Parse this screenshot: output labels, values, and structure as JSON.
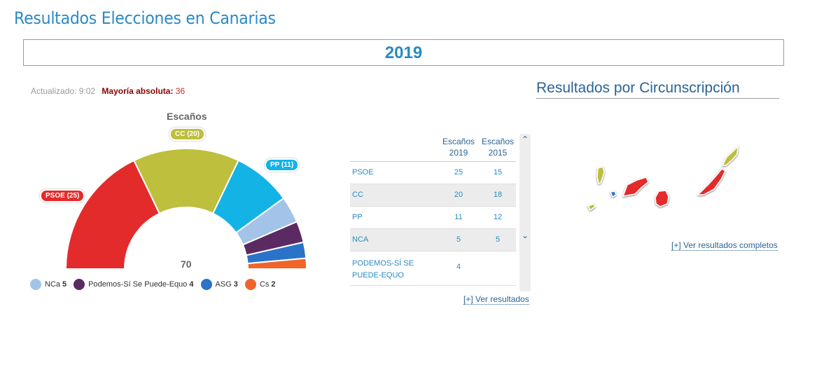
{
  "page": {
    "title": "Resultados Elecciones en Canarias",
    "year": "2019"
  },
  "status": {
    "updated_label": "Actualizado:",
    "updated_time": "9:02",
    "majority_label": "Mayoría absoluta:",
    "majority_value": "36"
  },
  "hemicycle": {
    "title": "Escaños",
    "total": "70",
    "tags": {
      "psoe": "PSOE (25)",
      "cc": "CC (20)",
      "pp": "PP (11)"
    },
    "colors": {
      "PSOE": "#e42b2b",
      "CC": "#bdbf3d",
      "PP": "#14b3e6",
      "NCa": "#a3c4e8",
      "Podemos": "#5b2a63",
      "ASG": "#2a73c8",
      "Cs": "#f0642a"
    }
  },
  "chart_data": {
    "type": "pie",
    "title": "Escaños",
    "total": 70,
    "slices": [
      {
        "name": "PSOE",
        "value": 25
      },
      {
        "name": "CC",
        "value": 20
      },
      {
        "name": "PP",
        "value": 11
      },
      {
        "name": "NCa",
        "value": 5
      },
      {
        "name": "Podemos-Sí Se Puede-Equo",
        "value": 4
      },
      {
        "name": "ASG",
        "value": 3
      },
      {
        "name": "Cs",
        "value": 2
      }
    ]
  },
  "legend": [
    {
      "name": "NCa",
      "value": "5",
      "color": "#a3c4e8"
    },
    {
      "name": "Podemos-Sí Se Puede-Equo",
      "value": "4",
      "color": "#5b2a63"
    },
    {
      "name": "ASG",
      "value": "3",
      "color": "#2a73c8"
    },
    {
      "name": "Cs",
      "value": "2",
      "color": "#f0642a"
    }
  ],
  "table": {
    "header_2019": "Escaños 2019",
    "header_2015": "Escaños 2015",
    "rows": [
      {
        "party": "PSOE",
        "s2019": "25",
        "s2015": "15"
      },
      {
        "party": "CC",
        "s2019": "20",
        "s2015": "18"
      },
      {
        "party": "PP",
        "s2019": "11",
        "s2015": "12"
      },
      {
        "party": "NCA",
        "s2019": "5",
        "s2015": "5"
      },
      {
        "party": "PODEMOS-SÍ SE PUEDE-EQUO",
        "s2019": "4",
        "s2015": ""
      }
    ],
    "link": "[+] Ver resultados"
  },
  "circunscripcion": {
    "title": "Resultados por Circunscripción",
    "link": "[+] Ver resultados completos",
    "islands": [
      {
        "name": "La Palma",
        "color": "#bdbf3d"
      },
      {
        "name": "El Hierro",
        "color": "#bdbf3d"
      },
      {
        "name": "La Gomera",
        "color": "#2a73c8"
      },
      {
        "name": "Tenerife",
        "color": "#e42b2b"
      },
      {
        "name": "Gran Canaria",
        "color": "#e42b2b"
      },
      {
        "name": "Fuerteventura",
        "color": "#e42b2b"
      },
      {
        "name": "Lanzarote",
        "color": "#bdbf3d"
      }
    ]
  }
}
